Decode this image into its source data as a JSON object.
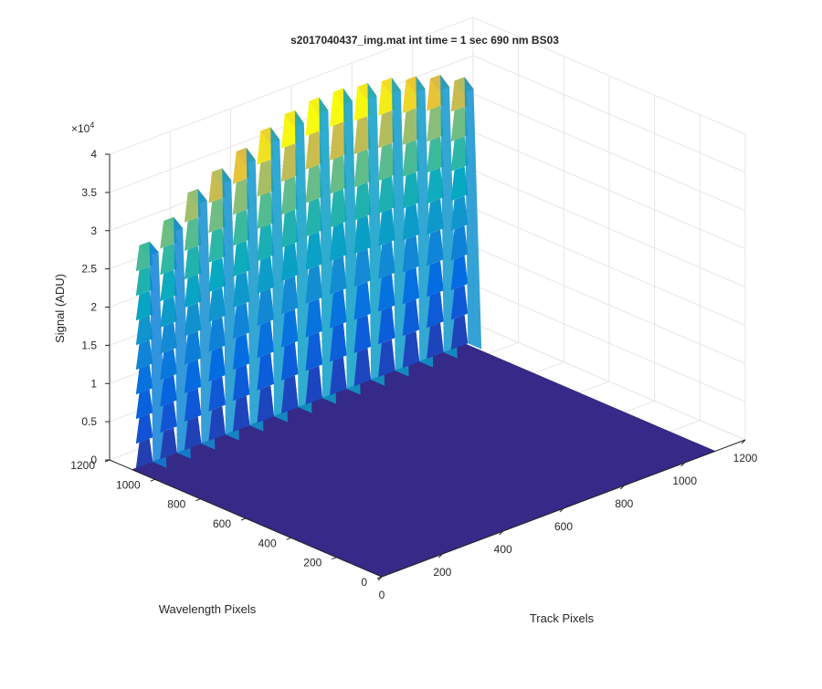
{
  "chart_data": {
    "type": "surface",
    "title": "s2017040437_img.mat int time = 1 sec  690 nm BS03",
    "xlabel": "Track Pixels",
    "ylabel": "Wavelength Pixels",
    "zlabel": "Signal (ADU)",
    "z_exponent_label": "×10",
    "z_exponent_power": "4",
    "xlim": [
      0,
      1200
    ],
    "ylim": [
      0,
      1200
    ],
    "zlim": [
      0,
      40000
    ],
    "x_ticks": [
      "0",
      "200",
      "400",
      "600",
      "800",
      "1000",
      "1200"
    ],
    "y_ticks": [
      "0",
      "200",
      "400",
      "600",
      "800",
      "1000",
      "1200"
    ],
    "z_ticks": [
      "0",
      "0.5",
      "1",
      "1.5",
      "2",
      "2.5",
      "3",
      "3.5",
      "4"
    ],
    "grid": true,
    "colormap": "parula",
    "data_extent": {
      "x_max": 1100,
      "y_max": 1100
    },
    "peaks": {
      "track_position_wavelength": 1100,
      "description_series": "peak signal per track (ADU)",
      "track_centers": [
        40,
        120,
        200,
        280,
        360,
        440,
        520,
        600,
        680,
        760,
        840,
        920,
        1000,
        1080
      ],
      "peak_signal": [
        29000,
        31000,
        33500,
        35000,
        36500,
        38000,
        39000,
        39500,
        39500,
        39000,
        38500,
        37500,
        36500,
        35000
      ]
    },
    "baseline_signal": 0
  }
}
